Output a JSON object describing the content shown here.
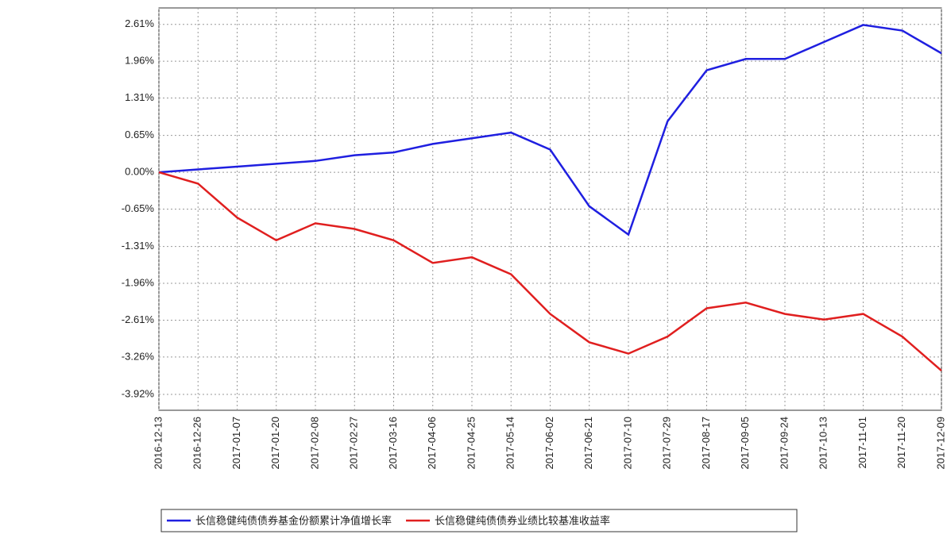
{
  "chart_data": {
    "type": "line",
    "categories": [
      "2016-12-13",
      "2016-12-26",
      "2017-01-07",
      "2017-01-20",
      "2017-02-08",
      "2017-02-27",
      "2017-03-16",
      "2017-04-06",
      "2017-04-25",
      "2017-05-14",
      "2017-06-02",
      "2017-06-21",
      "2017-07-10",
      "2017-07-29",
      "2017-08-17",
      "2017-09-05",
      "2017-09-24",
      "2017-10-13",
      "2017-11-01",
      "2017-11-20",
      "2017-12-09"
    ],
    "series": [
      {
        "name": "长信稳健纯债债券基金份额累计净值增长率",
        "color": "#1f1fe0",
        "values": [
          0,
          0.05,
          0.1,
          0.15,
          0.2,
          0.3,
          0.35,
          0.5,
          0.6,
          0.7,
          0.4,
          -0.6,
          -1.1,
          0.9,
          1.8,
          2.0,
          2.0,
          2.3,
          2.6,
          2.5,
          2.1
        ]
      },
      {
        "name": "长信稳健纯债债券业绩比较基准收益率",
        "color": "#e01f1f",
        "values": [
          0,
          -0.2,
          -0.8,
          -1.2,
          -0.9,
          -1.0,
          -1.2,
          -1.6,
          -1.5,
          -1.8,
          -2.5,
          -3.0,
          -3.2,
          -2.9,
          -2.4,
          -2.3,
          -2.5,
          -2.6,
          -2.5,
          -2.9,
          -3.5
        ]
      }
    ],
    "ylim": [
      -4.2,
      2.9
    ],
    "yticks": [
      {
        "value": -3.92,
        "label": "-3.92%"
      },
      {
        "value": -3.26,
        "label": "-3.26%"
      },
      {
        "value": -2.61,
        "label": "-2.61%"
      },
      {
        "value": -1.96,
        "label": "-1.96%"
      },
      {
        "value": -1.31,
        "label": "-1.31%"
      },
      {
        "value": -0.65,
        "label": "-0.65%"
      },
      {
        "value": 0,
        "label": "0.00%"
      },
      {
        "value": 0.65,
        "label": "0.65%"
      },
      {
        "value": 1.31,
        "label": "1.31%"
      },
      {
        "value": 1.96,
        "label": "1.96%"
      },
      {
        "value": 2.61,
        "label": "2.61%"
      }
    ],
    "grid": true
  }
}
